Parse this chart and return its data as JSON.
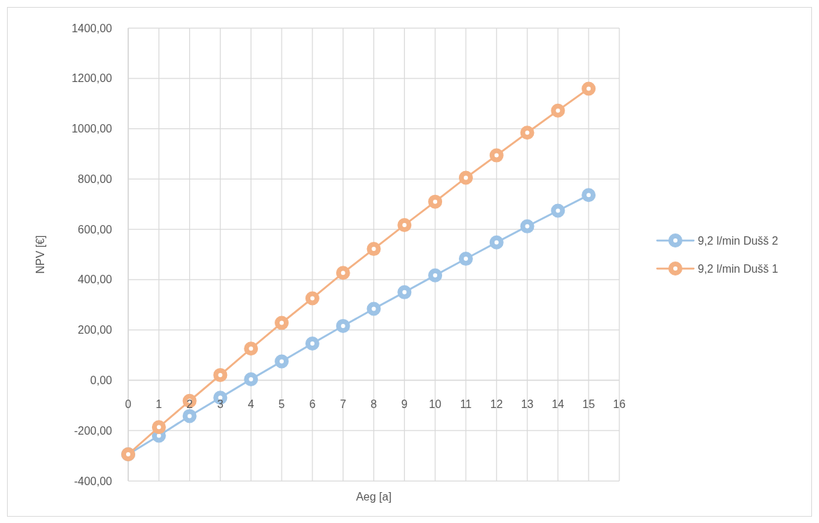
{
  "chart_data": {
    "type": "line",
    "xlabel": "Aeg [a]",
    "ylabel": "NPV [€]",
    "x": [
      0,
      1,
      2,
      3,
      4,
      5,
      6,
      7,
      8,
      9,
      10,
      11,
      12,
      13,
      14,
      15
    ],
    "xlim": [
      0,
      16
    ],
    "xticks": [
      0,
      1,
      2,
      3,
      4,
      5,
      6,
      7,
      8,
      9,
      10,
      11,
      12,
      13,
      14,
      15,
      16
    ],
    "ylim": [
      -400,
      1400
    ],
    "yticks": [
      {
        "value": -400,
        "label": "-400,00"
      },
      {
        "value": -200,
        "label": "-200,00"
      },
      {
        "value": 0,
        "label": "0,00"
      },
      {
        "value": 200,
        "label": "200,00"
      },
      {
        "value": 400,
        "label": "400,00"
      },
      {
        "value": 600,
        "label": "600,00"
      },
      {
        "value": 800,
        "label": "800,00"
      },
      {
        "value": 1000,
        "label": "1000,00"
      },
      {
        "value": 1200,
        "label": "1200,00"
      },
      {
        "value": 1400,
        "label": "1400,00"
      }
    ],
    "grid": true,
    "legend": "right",
    "marker": "circle",
    "line_style": "solid",
    "series": [
      {
        "name": "9,2 l/min Dušš 2",
        "color": "#9dc3e6",
        "values": [
          -294,
          -220,
          -142,
          -69,
          4,
          75,
          146,
          216,
          284,
          350,
          417,
          483,
          548,
          612,
          674,
          736
        ]
      },
      {
        "name": "9,2 l/min Dušš 1",
        "color": "#f4b183",
        "values": [
          -294,
          -186,
          -82,
          21,
          126,
          228,
          326,
          427,
          522,
          617,
          710,
          805,
          894,
          984,
          1072,
          1159
        ]
      }
    ]
  }
}
